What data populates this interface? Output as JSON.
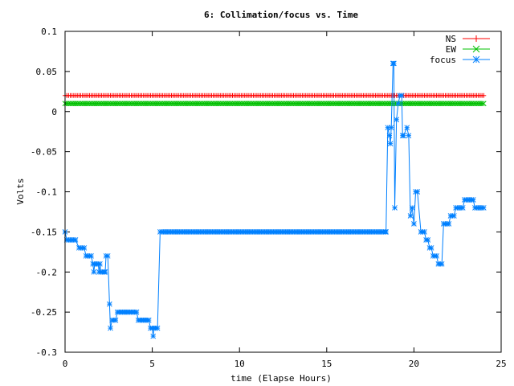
{
  "chart_data": {
    "type": "line",
    "title": "6: Collimation/focus vs. Time",
    "xlabel": "time (Elapse Hours)",
    "ylabel": "Volts",
    "xlim": [
      0,
      25
    ],
    "ylim": [
      -0.3,
      0.1
    ],
    "xticks": [
      0,
      5,
      10,
      15,
      20,
      25
    ],
    "yticks": [
      -0.3,
      -0.25,
      -0.2,
      -0.15,
      -0.1,
      -0.05,
      0,
      0.05,
      0.1
    ],
    "xtick_labels": [
      "0",
      "5",
      "10",
      "15",
      "20",
      "25"
    ],
    "ytick_labels": [
      "-0.3",
      "-0.25",
      "-0.2",
      "-0.15",
      "-0.1",
      "-0.05",
      "0",
      "0.05",
      "0.1"
    ],
    "grid": false,
    "legend": "top-right",
    "series": [
      {
        "name": "NS",
        "color": "#ff0000",
        "marker": "plus",
        "points": [
          [
            0,
            0.02
          ],
          [
            24,
            0.02
          ]
        ]
      },
      {
        "name": "EW",
        "color": "#00c000",
        "marker": "cross",
        "points": [
          [
            0,
            0.01
          ],
          [
            24,
            0.01
          ]
        ]
      },
      {
        "name": "focus",
        "color": "#0080ff",
        "marker": "star",
        "points": [
          [
            0,
            -0.15
          ],
          [
            0.1,
            -0.16
          ],
          [
            0.6,
            -0.16
          ],
          [
            0.8,
            -0.17
          ],
          [
            1.1,
            -0.17
          ],
          [
            1.2,
            -0.18
          ],
          [
            1.5,
            -0.18
          ],
          [
            1.6,
            -0.19
          ],
          [
            1.65,
            -0.2
          ],
          [
            1.7,
            -0.19
          ],
          [
            1.9,
            -0.19
          ],
          [
            1.95,
            -0.2
          ],
          [
            2.0,
            -0.19
          ],
          [
            2.05,
            -0.2
          ],
          [
            2.3,
            -0.2
          ],
          [
            2.35,
            -0.18
          ],
          [
            2.45,
            -0.18
          ],
          [
            2.55,
            -0.24
          ],
          [
            2.6,
            -0.27
          ],
          [
            2.7,
            -0.26
          ],
          [
            2.9,
            -0.26
          ],
          [
            3.0,
            -0.25
          ],
          [
            4.1,
            -0.25
          ],
          [
            4.2,
            -0.26
          ],
          [
            4.8,
            -0.26
          ],
          [
            4.9,
            -0.27
          ],
          [
            5.0,
            -0.27
          ],
          [
            5.05,
            -0.28
          ],
          [
            5.1,
            -0.27
          ],
          [
            5.3,
            -0.27
          ],
          [
            5.45,
            -0.15
          ],
          [
            18.4,
            -0.15
          ],
          [
            18.5,
            -0.02
          ],
          [
            18.6,
            -0.03
          ],
          [
            18.65,
            -0.04
          ],
          [
            18.7,
            -0.02
          ],
          [
            18.8,
            0.06
          ],
          [
            18.85,
            0.06
          ],
          [
            18.9,
            -0.12
          ],
          [
            19.0,
            -0.01
          ],
          [
            19.1,
            0.01
          ],
          [
            19.2,
            0.02
          ],
          [
            19.3,
            0.02
          ],
          [
            19.35,
            -0.03
          ],
          [
            19.4,
            -0.03
          ],
          [
            19.6,
            -0.02
          ],
          [
            19.7,
            -0.03
          ],
          [
            19.8,
            -0.13
          ],
          [
            19.9,
            -0.12
          ],
          [
            20.0,
            -0.14
          ],
          [
            20.1,
            -0.1
          ],
          [
            20.2,
            -0.1
          ],
          [
            20.4,
            -0.15
          ],
          [
            20.6,
            -0.15
          ],
          [
            20.7,
            -0.16
          ],
          [
            20.8,
            -0.16
          ],
          [
            20.9,
            -0.17
          ],
          [
            21.0,
            -0.17
          ],
          [
            21.1,
            -0.18
          ],
          [
            21.3,
            -0.18
          ],
          [
            21.4,
            -0.19
          ],
          [
            21.6,
            -0.19
          ],
          [
            21.7,
            -0.14
          ],
          [
            22.0,
            -0.14
          ],
          [
            22.1,
            -0.13
          ],
          [
            22.3,
            -0.13
          ],
          [
            22.4,
            -0.12
          ],
          [
            22.8,
            -0.12
          ],
          [
            22.9,
            -0.11
          ],
          [
            23.4,
            -0.11
          ],
          [
            23.5,
            -0.12
          ],
          [
            24,
            -0.12
          ]
        ]
      }
    ]
  }
}
